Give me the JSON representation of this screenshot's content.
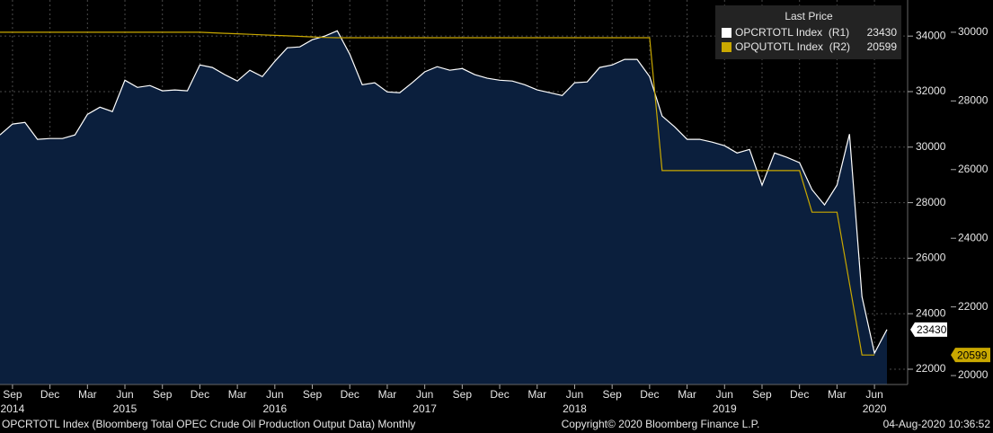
{
  "chart_data": {
    "type": "area-line",
    "legend_title": "Last Price",
    "x": [
      "2014-08",
      "2014-09",
      "2014-10",
      "2014-11",
      "2014-12",
      "2015-01",
      "2015-02",
      "2015-03",
      "2015-04",
      "2015-05",
      "2015-06",
      "2015-07",
      "2015-08",
      "2015-09",
      "2015-10",
      "2015-11",
      "2015-12",
      "2016-01",
      "2016-02",
      "2016-03",
      "2016-04",
      "2016-05",
      "2016-06",
      "2016-07",
      "2016-08",
      "2016-09",
      "2016-10",
      "2016-11",
      "2016-12",
      "2017-01",
      "2017-02",
      "2017-03",
      "2017-04",
      "2017-05",
      "2017-06",
      "2017-07",
      "2017-08",
      "2017-09",
      "2017-10",
      "2017-11",
      "2017-12",
      "2018-01",
      "2018-02",
      "2018-03",
      "2018-04",
      "2018-05",
      "2018-06",
      "2018-07",
      "2018-08",
      "2018-09",
      "2018-10",
      "2018-11",
      "2018-12",
      "2019-01",
      "2019-02",
      "2019-03",
      "2019-04",
      "2019-05",
      "2019-06",
      "2019-07",
      "2019-08",
      "2019-09",
      "2019-10",
      "2019-11",
      "2019-12",
      "2020-01",
      "2020-02",
      "2020-03",
      "2020-04",
      "2020-05",
      "2020-06",
      "2020-07"
    ],
    "series": [
      {
        "name": "OPCRTOTL Index  (R1)",
        "color": "#ffffff",
        "fill": "#0b1f3d",
        "axis": "y",
        "values": [
          30440,
          30830,
          30890,
          30280,
          30310,
          30310,
          30440,
          31180,
          31440,
          31280,
          32410,
          32150,
          32220,
          32030,
          32060,
          32030,
          32960,
          32870,
          32610,
          32380,
          32770,
          32540,
          33090,
          33580,
          33610,
          33870,
          34000,
          34190,
          33350,
          32250,
          32320,
          31990,
          31960,
          32320,
          32710,
          32900,
          32770,
          32830,
          32610,
          32480,
          32410,
          32380,
          32250,
          32060,
          31960,
          31860,
          32320,
          32350,
          32870,
          32960,
          33160,
          33160,
          32540,
          31120,
          30730,
          30280,
          30280,
          30180,
          30050,
          29790,
          29920,
          28630,
          29790,
          29630,
          29440,
          28470,
          27920,
          28630,
          30470,
          24610,
          22580,
          23430
        ]
      },
      {
        "name": "OPQUTOTL Index  (R2)",
        "color": "#c9a800",
        "axis": "y2",
        "values": [
          30000,
          30000,
          30000,
          30000,
          30000,
          30000,
          30000,
          30000,
          30000,
          30000,
          30000,
          30000,
          30000,
          30000,
          30000,
          30000,
          30000,
          29985,
          29970,
          29955,
          29940,
          29925,
          29910,
          29895,
          29880,
          29865,
          29850,
          29840,
          29840,
          29840,
          29840,
          29840,
          29840,
          29840,
          29840,
          29840,
          29840,
          29840,
          29840,
          29840,
          29840,
          29840,
          29840,
          29840,
          29840,
          29840,
          29840,
          29840,
          29840,
          29840,
          29840,
          29840,
          29840,
          25970,
          25970,
          25970,
          25970,
          25970,
          25970,
          25970,
          25970,
          25970,
          25970,
          25970,
          25970,
          24760,
          24760,
          24760,
          22680,
          20600,
          20599,
          null
        ]
      }
    ],
    "ylim": [
      21450,
      35300
    ],
    "yticks": [
      22000,
      24000,
      26000,
      28000,
      30000,
      32000,
      34000
    ],
    "y2lim": [
      19740,
      30940
    ],
    "y2ticks": [
      20000,
      22000,
      24000,
      26000,
      28000,
      30000
    ],
    "xticks": [
      {
        "value": "2014-09",
        "label": "Sep"
      },
      {
        "value": "2014-12",
        "label": "Dec"
      },
      {
        "value": "2015-03",
        "label": "Mar"
      },
      {
        "value": "2015-06",
        "label": "Jun"
      },
      {
        "value": "2015-09",
        "label": "Sep"
      },
      {
        "value": "2015-12",
        "label": "Dec"
      },
      {
        "value": "2016-03",
        "label": "Mar"
      },
      {
        "value": "2016-06",
        "label": "Jun"
      },
      {
        "value": "2016-09",
        "label": "Sep"
      },
      {
        "value": "2016-12",
        "label": "Dec"
      },
      {
        "value": "2017-03",
        "label": "Mar"
      },
      {
        "value": "2017-06",
        "label": "Jun"
      },
      {
        "value": "2017-09",
        "label": "Sep"
      },
      {
        "value": "2017-12",
        "label": "Dec"
      },
      {
        "value": "2018-03",
        "label": "Mar"
      },
      {
        "value": "2018-06",
        "label": "Jun"
      },
      {
        "value": "2018-09",
        "label": "Sep"
      },
      {
        "value": "2018-12",
        "label": "Dec"
      },
      {
        "value": "2019-03",
        "label": "Mar"
      },
      {
        "value": "2019-06",
        "label": "Jun"
      },
      {
        "value": "2019-09",
        "label": "Sep"
      },
      {
        "value": "2019-12",
        "label": "Dec"
      },
      {
        "value": "2020-03",
        "label": "Mar"
      },
      {
        "value": "2020-06",
        "label": "Jun"
      }
    ],
    "xyears": [
      {
        "value": "2014-09",
        "label": "2014"
      },
      {
        "value": "2015-06",
        "label": "2015"
      },
      {
        "value": "2016-06",
        "label": "2016"
      },
      {
        "value": "2017-06",
        "label": "2017"
      },
      {
        "value": "2018-06",
        "label": "2018"
      },
      {
        "value": "2019-06",
        "label": "2019"
      },
      {
        "value": "2020-06",
        "label": "2020"
      }
    ],
    "grid": true,
    "footer": {
      "source": "OPCRTOTL Index (Bloomberg Total OPEC Crude Oil Production Output Data)  Monthly",
      "copyright": "Copyright© 2020 Bloomberg Finance L.P.",
      "timestamp": "04-Aug-2020 10:36:52"
    }
  }
}
